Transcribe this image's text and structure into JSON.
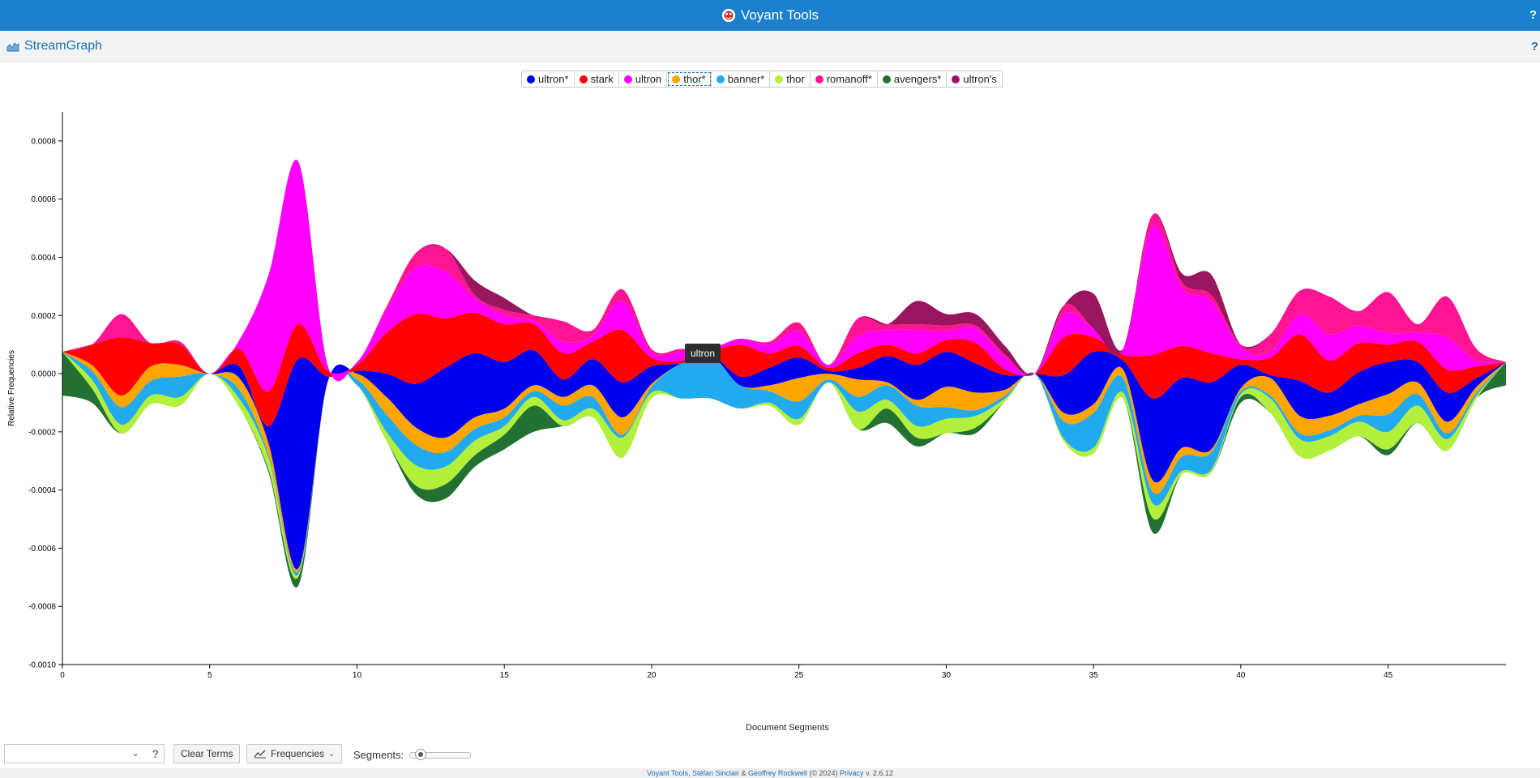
{
  "app": {
    "title": "Voyant Tools",
    "help": "?"
  },
  "panel": {
    "title": "StreamGraph",
    "help": "?"
  },
  "legend": [
    {
      "label": "ultron*",
      "color": "#0000ee"
    },
    {
      "label": "stark",
      "color": "#ff0000"
    },
    {
      "label": "ultron",
      "color": "#ff00ff"
    },
    {
      "label": "thor*",
      "color": "#ffa500",
      "selected": true
    },
    {
      "label": "banner*",
      "color": "#22aaee"
    },
    {
      "label": "thor",
      "color": "#b3f03c"
    },
    {
      "label": "romanoff*",
      "color": "#ff1493"
    },
    {
      "label": "avengers*",
      "color": "#237033"
    },
    {
      "label": "ultron's",
      "color": "#9a1560"
    }
  ],
  "tooltip": "ultron",
  "toolbar": {
    "clear_terms": "Clear Terms",
    "frequencies": "Frequencies",
    "segments_label": "Segments:",
    "help": "?"
  },
  "footer": {
    "link1": "Voyant Tools",
    "sep1": ", ",
    "author1": "Stéfan Sinclair",
    "amp": " & ",
    "author2": "Geoffrey Rockwell",
    "copyright": " (© 2024) ",
    "privacy": "Privacy",
    "version": " v. 2.6.12"
  },
  "chart_data": {
    "type": "area",
    "xlabel": "Document Segments",
    "ylabel": "Relative Frequencies",
    "xlim": [
      0,
      49
    ],
    "ylim": [
      -0.001,
      0.0009
    ],
    "xticks": [
      "0",
      "5",
      "10",
      "15",
      "20",
      "25",
      "30",
      "35",
      "40",
      "45"
    ],
    "xtick_values": [
      0,
      5,
      10,
      15,
      20,
      25,
      30,
      35,
      40,
      45
    ],
    "yticks": [
      "0.0008",
      "0.0006",
      "0.0004",
      "0.0002",
      "0.0000",
      "-0.0002",
      "-0.0004",
      "-0.0006",
      "-0.0008",
      "-0.0010"
    ],
    "ytick_values": [
      0.0008,
      0.0006,
      0.0004,
      0.0002,
      0,
      -0.0002,
      -0.0004,
      -0.0006,
      -0.0008,
      -0.001
    ],
    "x": [
      0,
      1,
      2,
      3,
      4,
      5,
      6,
      7,
      8,
      9,
      10,
      11,
      12,
      13,
      14,
      15,
      16,
      17,
      18,
      19,
      20,
      21,
      22,
      23,
      24,
      25,
      26,
      27,
      28,
      29,
      30,
      31,
      32,
      33,
      34,
      35,
      36,
      37,
      38,
      39,
      40,
      41,
      42,
      43,
      44,
      45,
      46,
      47,
      48,
      49
    ],
    "series": [
      {
        "name": "avengers*",
        "color": "#237033",
        "values": [
          0.00015,
          5e-05,
          0,
          0,
          0,
          0,
          0,
          1e-05,
          3e-05,
          0,
          0,
          0,
          3e-05,
          5e-05,
          4e-05,
          5e-05,
          9e-05,
          0,
          0,
          0,
          0,
          0,
          0,
          0,
          0,
          0,
          0,
          0,
          5e-05,
          3e-05,
          0,
          2e-05,
          0,
          0,
          0,
          0,
          0,
          5e-05,
          0,
          0,
          2e-05,
          0,
          0,
          0,
          0,
          2e-05,
          0,
          0,
          0,
          8e-05
        ]
      },
      {
        "name": "thor",
        "color": "#b3f03c",
        "values": [
          0,
          3e-05,
          3e-05,
          3e-05,
          3e-05,
          0,
          3e-05,
          4e-05,
          1e-05,
          0,
          0,
          3e-05,
          7e-05,
          6e-05,
          5e-05,
          3e-05,
          3e-05,
          2e-05,
          3e-05,
          7e-05,
          2e-05,
          0,
          0,
          0,
          1e-05,
          2e-05,
          0,
          6e-05,
          3e-05,
          4e-05,
          5e-05,
          4e-05,
          1e-05,
          0,
          1e-05,
          2e-05,
          2e-05,
          5e-05,
          1e-05,
          1e-05,
          1e-05,
          5e-05,
          6e-05,
          5e-05,
          5e-05,
          6e-05,
          6e-05,
          4e-05,
          1e-05,
          0
        ]
      },
      {
        "name": "banner*",
        "color": "#22aaee",
        "values": [
          0,
          3e-05,
          6e-05,
          5e-05,
          7e-05,
          0,
          3e-05,
          1e-05,
          1e-05,
          0,
          2e-05,
          6e-05,
          7e-05,
          5e-05,
          4e-05,
          3e-05,
          2e-05,
          5e-05,
          4e-05,
          1e-05,
          2e-05,
          0.00012,
          0.00015,
          8e-05,
          4e-05,
          6e-05,
          1e-05,
          5e-05,
          5e-05,
          7e-05,
          4e-05,
          2e-05,
          1e-05,
          0,
          6e-05,
          0.00012,
          5e-05,
          4e-05,
          5e-05,
          6e-05,
          1e-05,
          1e-05,
          2e-05,
          2e-05,
          2e-05,
          6e-05,
          4e-05,
          2e-05,
          1e-05,
          0
        ]
      },
      {
        "name": "thor*",
        "color": "#ffa500",
        "values": [
          0,
          2e-05,
          4e-05,
          5e-05,
          4e-05,
          0,
          4e-05,
          4e-05,
          1e-05,
          0,
          2e-05,
          6e-05,
          6e-05,
          5e-05,
          4e-05,
          3e-05,
          2e-05,
          3e-05,
          4e-05,
          6e-05,
          1e-05,
          0,
          0,
          0,
          2e-05,
          8e-05,
          2e-05,
          6e-05,
          1e-05,
          2e-05,
          7e-05,
          6e-05,
          2e-05,
          0,
          3e-05,
          3e-05,
          3e-05,
          4e-05,
          3e-05,
          1e-05,
          1e-05,
          6e-05,
          6e-05,
          5e-05,
          4e-05,
          7e-05,
          4e-05,
          4e-05,
          2e-05,
          0
        ]
      },
      {
        "name": "ultron*",
        "color": "#0000ee",
        "values": [
          0,
          0,
          0,
          0,
          0,
          0,
          4e-05,
          6e-05,
          0.00072,
          2e-05,
          1e-05,
          8e-05,
          0.00015,
          0.00024,
          0.00022,
          0.00016,
          0.00012,
          6e-05,
          9e-05,
          0.00012,
          6e-05,
          0,
          0,
          3e-05,
          6e-05,
          7e-05,
          1e-05,
          4e-05,
          9e-05,
          0.00012,
          0.00012,
          0.0001,
          5e-05,
          0,
          0.00013,
          0.00018,
          3e-05,
          0.00028,
          0.00024,
          0.00023,
          8e-05,
          1e-05,
          0.00012,
          8e-05,
          0.00011,
          0.00011,
          7e-05,
          0.0001,
          3e-05,
          0
        ]
      },
      {
        "name": "stark",
        "color": "#ff0000",
        "values": [
          0,
          7e-05,
          0.0002,
          8e-05,
          7e-05,
          0,
          6e-05,
          0.00012,
          0.00012,
          2e-05,
          2e-05,
          0.00014,
          0.00024,
          0.00017,
          0.00014,
          0.00013,
          9e-05,
          9e-05,
          6e-05,
          0.00018,
          3e-05,
          1e-05,
          1e-05,
          0.00011,
          5e-05,
          4e-05,
          1e-05,
          5e-05,
          4e-05,
          4e-05,
          4e-05,
          7e-05,
          2e-05,
          0,
          0.00013,
          5e-05,
          2e-05,
          0.00015,
          0.00011,
          0.0001,
          2e-05,
          6e-05,
          0.00016,
          0.00011,
          0.0001,
          6e-05,
          7e-05,
          8e-05,
          4e-05,
          0
        ]
      },
      {
        "name": "ultron",
        "color": "#ff00ff",
        "values": [
          0,
          0,
          0,
          0,
          0,
          0,
          3e-05,
          0.0004,
          0.00056,
          2e-05,
          1e-05,
          8e-05,
          0.00016,
          0.00016,
          5e-05,
          3e-05,
          1e-05,
          4e-05,
          2e-05,
          0.0001,
          2e-05,
          3e-05,
          1e-05,
          2e-05,
          3e-05,
          5e-05,
          1e-05,
          6e-05,
          5e-05,
          8e-05,
          3e-05,
          5e-05,
          4e-05,
          0,
          8e-05,
          3e-05,
          2e-05,
          0.00044,
          0.0002,
          0.00018,
          4e-05,
          2e-05,
          7e-05,
          9e-05,
          6e-05,
          4e-05,
          3e-05,
          0.00011,
          2e-05,
          0
        ]
      },
      {
        "name": "romanoff*",
        "color": "#ff1493",
        "values": [
          0,
          0,
          8e-05,
          0,
          1e-05,
          0,
          0,
          0,
          0,
          0,
          0,
          1e-05,
          5e-05,
          8e-05,
          1e-05,
          2e-05,
          2e-05,
          7e-05,
          2e-05,
          4e-05,
          1e-05,
          1e-05,
          0,
          0,
          1e-05,
          3e-05,
          0,
          6e-05,
          2e-05,
          2e-05,
          2e-05,
          1e-05,
          1e-05,
          0,
          3e-05,
          0,
          0,
          4e-05,
          2e-05,
          2e-05,
          1e-05,
          6e-05,
          8e-05,
          0.00013,
          5e-05,
          0.00014,
          3e-05,
          0.00014,
          4e-05,
          0
        ]
      },
      {
        "name": "ultron's",
        "color": "#9a1560",
        "values": [
          0,
          0,
          0,
          0,
          0,
          0,
          0,
          0,
          0,
          0,
          0,
          0,
          0,
          0,
          5e-05,
          4e-05,
          0,
          0,
          0,
          0,
          0,
          0,
          0,
          0,
          0,
          0,
          0,
          0,
          0,
          8e-05,
          4e-05,
          4e-05,
          3e-05,
          0,
          0,
          0.00012,
          0,
          0,
          3e-05,
          7e-05,
          0,
          0,
          0,
          0,
          0,
          0,
          0,
          0,
          0,
          0
        ]
      }
    ]
  }
}
